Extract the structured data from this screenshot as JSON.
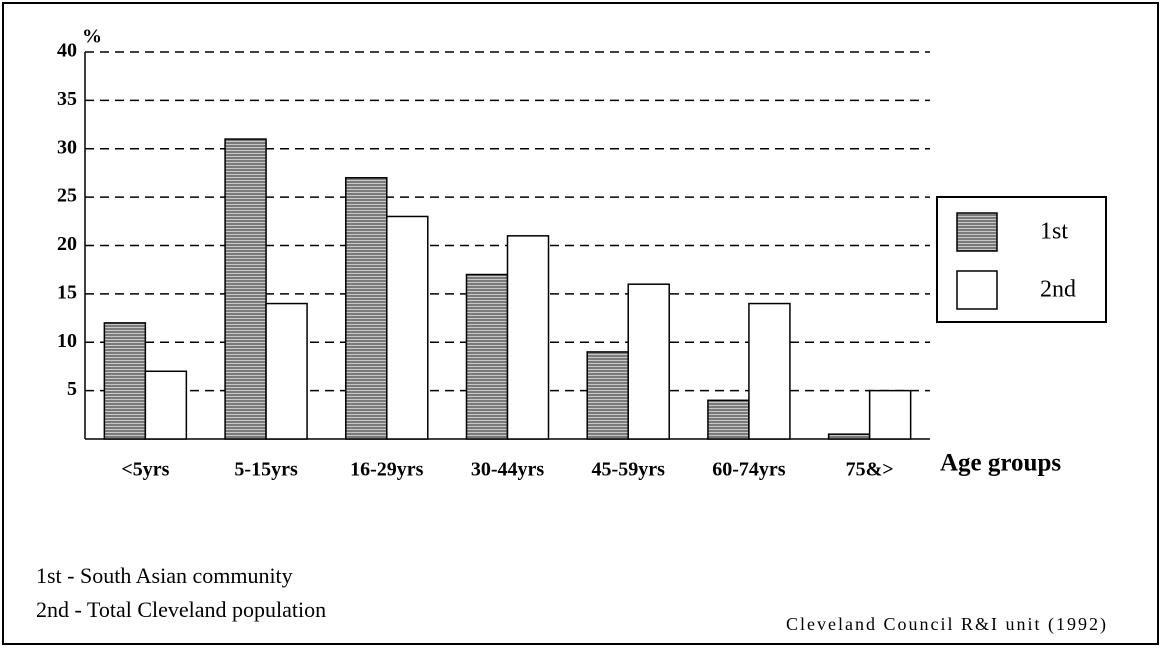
{
  "chart_data": {
    "type": "bar",
    "categories": [
      "<5yrs",
      "5-15yrs",
      "16-29yrs",
      "30-44yrs",
      "45-59yrs",
      "60-74yrs",
      "75&>"
    ],
    "series": [
      {
        "name": "1st",
        "color": "#7a7a7a",
        "values": [
          12,
          31,
          27,
          17,
          9,
          4,
          0.5
        ]
      },
      {
        "name": "2nd",
        "color": "#ffffff",
        "values": [
          7,
          14,
          23,
          21,
          16,
          14,
          5
        ]
      }
    ],
    "ylabel": "%",
    "xlabel": "Age groups",
    "ylim": [
      0,
      40
    ],
    "yticks": [
      5,
      10,
      15,
      20,
      25,
      30,
      35,
      40
    ],
    "grid": true,
    "legend": "right",
    "notes": [
      "1st - South Asian community",
      "2nd - Total Cleveland population"
    ],
    "source": "Cleveland Council R&I unit (1992)"
  }
}
